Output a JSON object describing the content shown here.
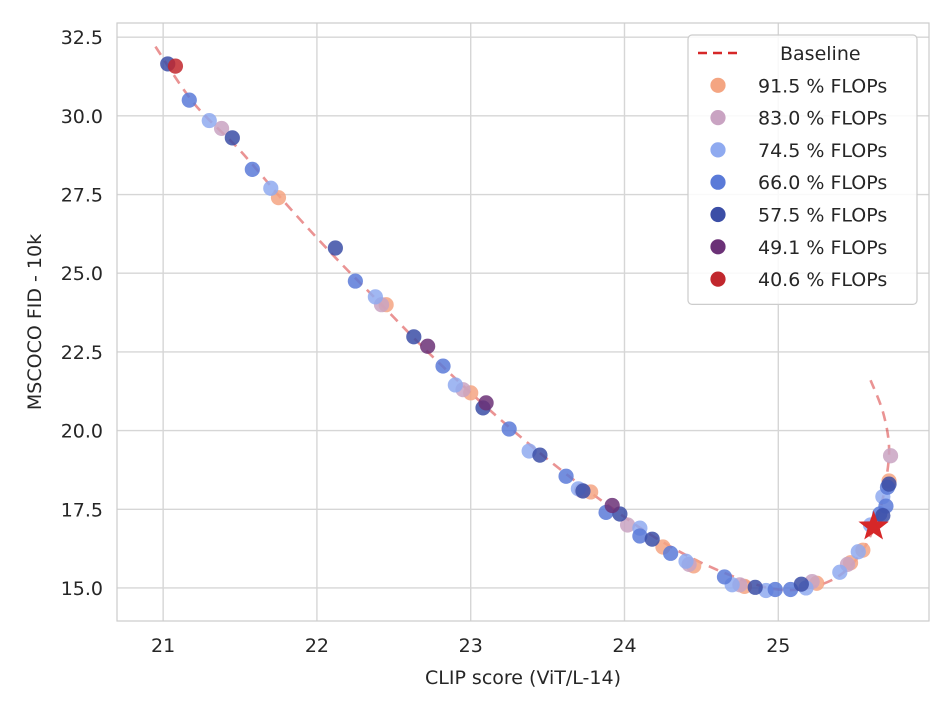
{
  "chart_data": {
    "type": "scatter",
    "xlabel": "CLIP score (ViT/L-14)",
    "ylabel": "MSCOCO FID - 10k",
    "xlim": [
      20.7,
      25.98
    ],
    "ylim": [
      13.95,
      32.95
    ],
    "xticks": [
      "21",
      "22",
      "23",
      "24",
      "25"
    ],
    "xtick_values": [
      21,
      22,
      23,
      24,
      25
    ],
    "yticks": [
      "15.0",
      "17.5",
      "20.0",
      "22.5",
      "25.0",
      "27.5",
      "30.0",
      "32.5"
    ],
    "ytick_values": [
      15.0,
      17.5,
      20.0,
      22.5,
      25.0,
      27.5,
      30.0,
      32.5
    ],
    "grid": true,
    "legend_position": "top-right",
    "baseline": {
      "name": "Baseline",
      "color": "#d62728",
      "points": [
        [
          20.95,
          32.2
        ],
        [
          21.2,
          30.4
        ],
        [
          21.5,
          28.9
        ],
        [
          21.8,
          27.2
        ],
        [
          22.1,
          25.6
        ],
        [
          22.4,
          24.1
        ],
        [
          22.7,
          22.6
        ],
        [
          23.0,
          21.2
        ],
        [
          23.3,
          19.9
        ],
        [
          23.6,
          18.7
        ],
        [
          23.9,
          17.6
        ],
        [
          24.2,
          16.6
        ],
        [
          24.5,
          15.8
        ],
        [
          24.8,
          15.2
        ],
        [
          25.0,
          14.95
        ],
        [
          25.2,
          15.0
        ],
        [
          25.4,
          15.4
        ],
        [
          25.55,
          16.2
        ],
        [
          25.65,
          17.3
        ],
        [
          25.7,
          18.4
        ],
        [
          25.72,
          19.5
        ],
        [
          25.68,
          20.6
        ],
        [
          25.6,
          21.6
        ]
      ]
    },
    "star": {
      "x": 25.62,
      "y": 16.95,
      "color": "#d62728"
    },
    "series": [
      {
        "name": "91.5 % FLOPs",
        "color": "#f4a582",
        "points": [
          [
            21.75,
            27.4
          ],
          [
            22.45,
            24.0
          ],
          [
            23.0,
            21.2
          ],
          [
            23.78,
            18.05
          ],
          [
            24.45,
            15.7
          ],
          [
            24.78,
            15.05
          ],
          [
            25.25,
            15.15
          ],
          [
            25.47,
            15.8
          ],
          [
            25.72,
            18.4
          ],
          [
            25.55,
            16.2
          ],
          [
            24.25,
            16.3
          ]
        ]
      },
      {
        "name": "83.0 % FLOPs",
        "color": "#c9a3c2",
        "points": [
          [
            21.38,
            29.6
          ],
          [
            22.42,
            24.0
          ],
          [
            22.95,
            21.3
          ],
          [
            23.72,
            18.1
          ],
          [
            24.02,
            17.0
          ],
          [
            24.42,
            15.75
          ],
          [
            24.75,
            15.1
          ],
          [
            25.22,
            15.2
          ],
          [
            25.45,
            15.75
          ],
          [
            25.73,
            19.2
          ]
        ]
      },
      {
        "name": "74.5 % FLOPs",
        "color": "#8faaf0",
        "points": [
          [
            21.3,
            29.85
          ],
          [
            21.7,
            27.7
          ],
          [
            22.38,
            24.25
          ],
          [
            22.9,
            21.45
          ],
          [
            23.38,
            19.35
          ],
          [
            23.7,
            18.15
          ],
          [
            24.1,
            16.9
          ],
          [
            24.4,
            15.85
          ],
          [
            24.7,
            15.1
          ],
          [
            24.92,
            14.92
          ],
          [
            25.18,
            15.0
          ],
          [
            25.4,
            15.5
          ],
          [
            25.52,
            16.15
          ],
          [
            25.68,
            17.9
          ],
          [
            25.6,
            17.0
          ]
        ]
      },
      {
        "name": "66.0 % FLOPs",
        "color": "#5a7ad8",
        "points": [
          [
            21.17,
            30.5
          ],
          [
            21.58,
            28.3
          ],
          [
            22.25,
            24.75
          ],
          [
            22.82,
            22.05
          ],
          [
            23.25,
            20.05
          ],
          [
            23.62,
            18.55
          ],
          [
            23.88,
            17.4
          ],
          [
            24.1,
            16.65
          ],
          [
            24.3,
            16.1
          ],
          [
            24.65,
            15.35
          ],
          [
            24.98,
            14.95
          ],
          [
            25.08,
            14.95
          ],
          [
            25.66,
            17.35
          ],
          [
            25.71,
            18.2
          ],
          [
            25.7,
            17.6
          ]
        ]
      },
      {
        "name": "57.5 % FLOPs",
        "color": "#3b4ea6",
        "points": [
          [
            21.03,
            31.65
          ],
          [
            21.45,
            29.3
          ],
          [
            22.12,
            25.8
          ],
          [
            22.63,
            22.98
          ],
          [
            23.08,
            20.72
          ],
          [
            23.45,
            19.22
          ],
          [
            23.73,
            18.08
          ],
          [
            23.97,
            17.35
          ],
          [
            24.18,
            16.55
          ],
          [
            24.85,
            15.02
          ],
          [
            25.15,
            15.12
          ],
          [
            25.72,
            18.3
          ],
          [
            25.68,
            17.3
          ]
        ]
      },
      {
        "name": "49.1 % FLOPs",
        "color": "#6b3177",
        "points": [
          [
            22.72,
            22.68
          ],
          [
            23.1,
            20.88
          ],
          [
            23.92,
            17.62
          ]
        ]
      },
      {
        "name": "40.6 % FLOPs",
        "color": "#c1272d",
        "points": [
          [
            21.08,
            31.58
          ]
        ]
      }
    ]
  }
}
